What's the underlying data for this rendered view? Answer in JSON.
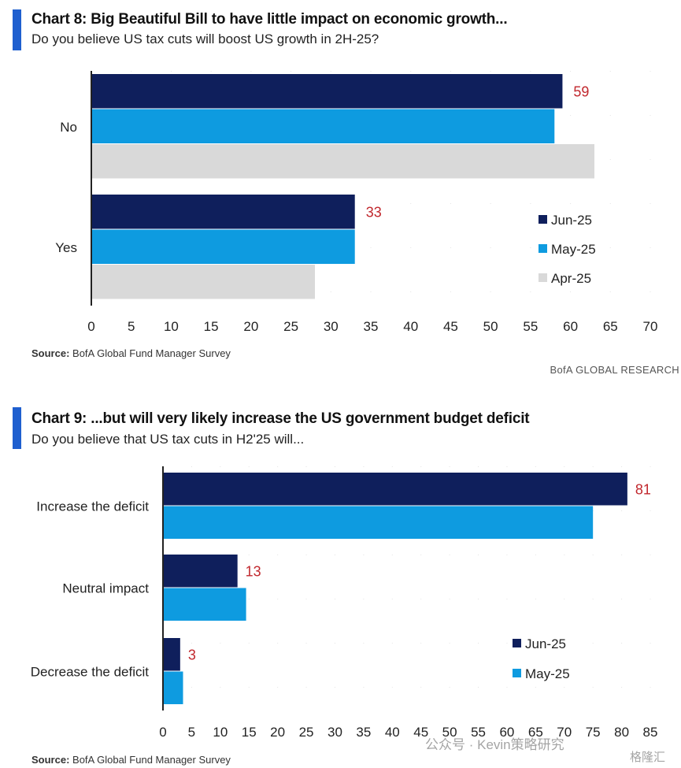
{
  "colors": {
    "jun": "#0f1f5c",
    "may": "#0e9be0",
    "apr": "#d9d9d9",
    "label": "#c1272d",
    "accent": "#1f5fcf"
  },
  "chart_data": [
    {
      "type": "bar",
      "orientation": "horizontal",
      "title": "Chart 8: Big Beautiful Bill to have little impact on economic growth...",
      "subtitle": "Do you believe US tax cuts will boost US growth in 2H-25?",
      "categories": [
        "No",
        "Yes"
      ],
      "series": [
        {
          "name": "Jun-25",
          "values": [
            59,
            33
          ]
        },
        {
          "name": "May-25",
          "values": [
            58,
            33
          ]
        },
        {
          "name": "Apr-25",
          "values": [
            63,
            28
          ]
        }
      ],
      "data_labels": [
        "59",
        "33"
      ],
      "xlim": [
        0,
        70
      ],
      "xticks": [
        "0",
        "5",
        "10",
        "15",
        "20",
        "25",
        "30",
        "35",
        "40",
        "45",
        "50",
        "55",
        "60",
        "65",
        "70"
      ],
      "legend": [
        "Jun-25",
        "May-25",
        "Apr-25"
      ],
      "source_label": "Source:",
      "source_text": "BofA Global Fund Manager Survey",
      "brand": "BofA GLOBAL RESEARCH"
    },
    {
      "type": "bar",
      "orientation": "horizontal",
      "title": "Chart 9: ...but will very likely increase the US government budget deficit",
      "subtitle": "Do you believe that US tax cuts in H2'25 will...",
      "categories": [
        "Increase the deficit",
        "Neutral impact",
        "Decrease the deficit"
      ],
      "series": [
        {
          "name": "Jun-25",
          "values": [
            81,
            13,
            3
          ]
        },
        {
          "name": "May-25",
          "values": [
            75,
            14.5,
            3.5
          ]
        }
      ],
      "data_labels": [
        "81",
        "13",
        "3"
      ],
      "xlim": [
        0,
        85
      ],
      "xticks": [
        "0",
        "5",
        "10",
        "15",
        "20",
        "25",
        "30",
        "35",
        "40",
        "45",
        "50",
        "55",
        "60",
        "65",
        "70",
        "75",
        "80",
        "85"
      ],
      "legend": [
        "Jun-25",
        "May-25"
      ],
      "source_label": "Source:",
      "source_text": "BofA Global Fund Manager Survey"
    }
  ],
  "watermark": "公众号 · Kevin策略研究",
  "watermark2": "格隆汇"
}
